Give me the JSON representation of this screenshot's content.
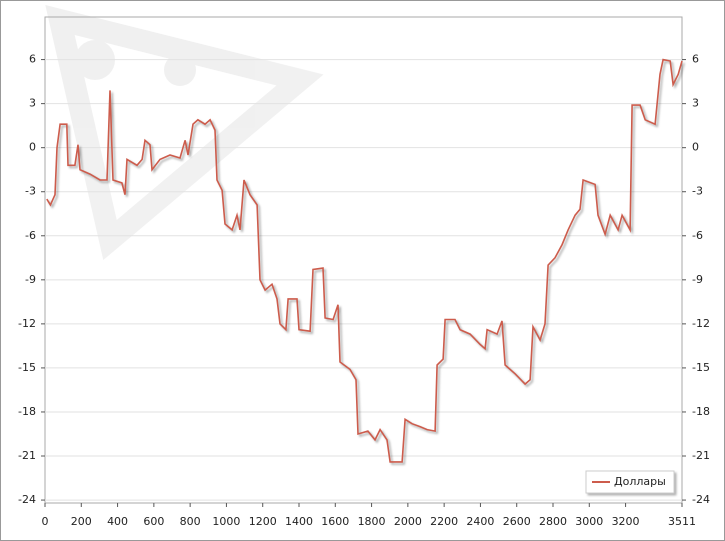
{
  "chart_data": {
    "type": "line",
    "x": [
      10,
      30,
      55,
      66,
      83,
      120,
      127,
      165,
      182,
      193,
      248,
      303,
      342,
      358,
      375,
      424,
      441,
      452,
      507,
      535,
      551,
      579,
      590,
      634,
      689,
      744,
      772,
      788,
      816,
      843,
      882,
      910,
      937,
      948,
      976,
      992,
      1031,
      1058,
      1075,
      1097,
      1130,
      1169,
      1185,
      1213,
      1251,
      1279,
      1295,
      1328,
      1340,
      1389,
      1400,
      1461,
      1477,
      1532,
      1544,
      1588,
      1615,
      1626,
      1681,
      1714,
      1725,
      1780,
      1819,
      1847,
      1885,
      1902,
      1968,
      1985,
      2023,
      2067,
      2106,
      2150,
      2161,
      2194,
      2205,
      2260,
      2288,
      2343,
      2398,
      2426,
      2437,
      2492,
      2519,
      2536,
      2591,
      2646,
      2674,
      2690,
      2729,
      2756,
      2773,
      2811,
      2850,
      2883,
      2922,
      2949,
      2966,
      3032,
      3048,
      3087,
      3115,
      3159,
      3181,
      3225,
      3236,
      3280,
      3308,
      3363,
      3390,
      3407,
      3446,
      3462,
      3490,
      3511
    ],
    "series": [
      {
        "name": "Доллары",
        "color": "#cd5c4c",
        "values": [
          -3.5,
          -3.9,
          -3.2,
          0,
          1.6,
          1.6,
          -1.2,
          -1.2,
          0.2,
          -1.5,
          -1.8,
          -2.2,
          -2.2,
          3.9,
          -2.2,
          -2.4,
          -3.2,
          -0.8,
          -1.2,
          -0.8,
          0.5,
          0.2,
          -1.5,
          -0.8,
          -0.5,
          -0.7,
          0.5,
          -0.5,
          1.6,
          1.9,
          1.6,
          1.9,
          1.2,
          -2.2,
          -2.9,
          -5.2,
          -5.6,
          -4.6,
          -5.6,
          -2.2,
          -3.2,
          -3.9,
          -9.0,
          -9.7,
          -9.3,
          -10.3,
          -12.0,
          -12.4,
          -10.3,
          -10.3,
          -12.4,
          -12.5,
          -8.3,
          -8.2,
          -11.6,
          -11.7,
          -10.7,
          -14.6,
          -15.1,
          -15.8,
          -19.5,
          -19.3,
          -19.9,
          -19.2,
          -19.9,
          -21.4,
          -21.4,
          -18.5,
          -18.8,
          -19.0,
          -19.2,
          -19.3,
          -14.8,
          -14.4,
          -11.7,
          -11.7,
          -12.4,
          -12.7,
          -13.4,
          -13.7,
          -12.4,
          -12.7,
          -11.8,
          -14.8,
          -15.4,
          -16.1,
          -15.8,
          -12.2,
          -13.1,
          -12.0,
          -8.0,
          -7.5,
          -6.6,
          -5.6,
          -4.6,
          -4.2,
          -2.2,
          -2.5,
          -4.6,
          -5.9,
          -4.6,
          -5.6,
          -4.6,
          -5.6,
          2.9,
          2.9,
          1.9,
          1.6,
          5.0,
          6.0,
          5.9,
          4.3,
          5.0,
          5.9
        ]
      }
    ],
    "xlim": [
      0,
      3511
    ],
    "xticks": [
      0,
      200,
      400,
      600,
      800,
      1000,
      1200,
      1400,
      1600,
      1800,
      2000,
      2200,
      2400,
      2600,
      2800,
      3000,
      3200,
      3511
    ],
    "ylim": [
      -24.2,
      8.9
    ],
    "yticks": [
      6,
      3,
      0,
      -3,
      -6,
      -9,
      -12,
      -15,
      -18,
      -21,
      -24
    ],
    "grid": true,
    "legend": "lower right",
    "right_axis": true
  }
}
